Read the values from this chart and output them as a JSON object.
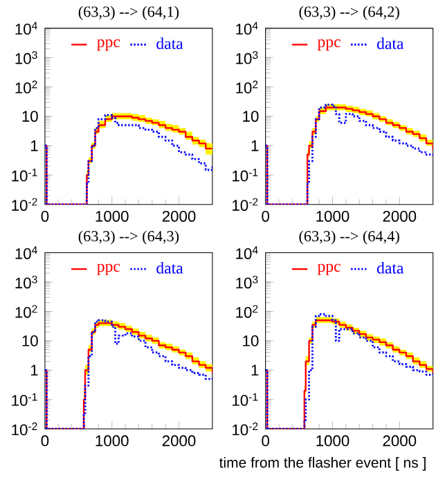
{
  "chart_data": [
    {
      "type": "step",
      "title": "(63,3) --> (64,1)",
      "log": "y",
      "legend": "top",
      "xlim": [
        0,
        2500
      ],
      "ylim": [
        0.01,
        10000
      ],
      "xticks": [
        0,
        1000,
        2000
      ],
      "yticks": [
        {
          "value": 0.01,
          "label": "10$^{-2}$"
        },
        {
          "value": 0.1,
          "label": "10$^{-1}$"
        },
        1,
        10,
        {
          "value": 100,
          "label": "10$^{2}$"
        },
        {
          "value": 1000,
          "label": "10$^{3}$"
        },
        {
          "value": 10000,
          "label": "10$^{4}$"
        }
      ],
      "series": [
        {
          "name": "ppc",
          "color": "#ff0000",
          "line_style": "solid",
          "x": [
            0,
            25,
            600,
            625,
            650,
            700,
            750,
            800,
            900,
            1000,
            1100,
            1200,
            1300,
            1400,
            1500,
            1600,
            1700,
            1800,
            1900,
            2000,
            2100,
            2200,
            2300,
            2400,
            2500
          ],
          "values": [
            1,
            0.01,
            0.01,
            0.1,
            0.3,
            1,
            3,
            5,
            8,
            10,
            10,
            10,
            9,
            8,
            7,
            6,
            5,
            4,
            3.5,
            3,
            2,
            1.5,
            1.2,
            0.8,
            0.8
          ],
          "upper": [
            1,
            0.01,
            0.01,
            0.15,
            0.4,
            1.3,
            4,
            7,
            11,
            13,
            13,
            13,
            12,
            11,
            9,
            8,
            7,
            5.5,
            5,
            4,
            3,
            2,
            1.6,
            1.2,
            1.2
          ],
          "lower": [
            1,
            0.01,
            0.01,
            0.08,
            0.25,
            0.8,
            2.5,
            4,
            6.5,
            8,
            8,
            8,
            7,
            6.5,
            5.5,
            5,
            4,
            3.2,
            2.8,
            2.4,
            1.6,
            1.1,
            0.9,
            0.5,
            0.5
          ]
        },
        {
          "name": "data",
          "color": "#0000ff",
          "line_style": "dotted",
          "x": [
            0,
            25,
            600,
            625,
            650,
            700,
            750,
            800,
            900,
            1000,
            1050,
            1100,
            1200,
            1300,
            1400,
            1500,
            1600,
            1700,
            1800,
            1900,
            2000,
            2100,
            2200,
            2300,
            2400,
            2500
          ],
          "values": [
            1,
            0.01,
            0.01,
            0.05,
            0.3,
            1,
            4,
            8,
            11,
            9,
            6,
            5,
            5,
            5,
            4,
            3.5,
            3,
            2,
            1.5,
            1,
            0.6,
            0.5,
            0.35,
            0.25,
            0.15,
            0.2
          ]
        }
      ]
    },
    {
      "type": "step",
      "title": "(63,3) --> (64,2)",
      "log": "y",
      "legend": "top",
      "xlim": [
        0,
        2500
      ],
      "ylim": [
        0.01,
        10000
      ],
      "xticks": [
        0,
        1000,
        2000
      ],
      "yticks": [
        {
          "value": 0.01,
          "label": "10$^{-2}$"
        },
        {
          "value": 0.1,
          "label": "10$^{-1}$"
        },
        1,
        10,
        {
          "value": 100,
          "label": "10$^{2}$"
        },
        {
          "value": 1000,
          "label": "10$^{3}$"
        },
        {
          "value": 10000,
          "label": "10$^{4}$"
        }
      ],
      "series": [
        {
          "name": "ppc",
          "color": "#ff0000",
          "line_style": "solid",
          "x": [
            0,
            25,
            600,
            625,
            650,
            700,
            750,
            800,
            900,
            1000,
            1100,
            1200,
            1300,
            1400,
            1500,
            1600,
            1700,
            1800,
            1900,
            2000,
            2100,
            2200,
            2300,
            2400,
            2500
          ],
          "values": [
            1,
            0.01,
            0.01,
            0.5,
            1,
            3,
            8,
            15,
            20,
            20,
            20,
            18,
            16,
            14,
            12,
            10,
            8,
            6,
            5,
            4,
            3,
            2.5,
            1.8,
            1.2,
            0.7
          ],
          "upper": [
            1,
            0.01,
            0.01,
            0.7,
            1.4,
            4,
            10,
            20,
            26,
            26,
            26,
            23,
            21,
            18,
            16,
            13,
            10,
            8,
            6.5,
            5,
            4,
            3.2,
            2.4,
            1.6,
            1
          ],
          "lower": [
            1,
            0.01,
            0.01,
            0.4,
            0.8,
            2.4,
            6.5,
            12,
            16,
            16,
            16,
            14,
            13,
            11,
            10,
            8,
            6.5,
            5,
            4,
            3.2,
            2.4,
            2,
            1.4,
            1,
            0.5
          ]
        },
        {
          "name": "data",
          "color": "#0000ff",
          "line_style": "dotted",
          "x": [
            0,
            25,
            600,
            625,
            650,
            700,
            750,
            800,
            900,
            1000,
            1050,
            1100,
            1200,
            1300,
            1400,
            1500,
            1600,
            1700,
            1800,
            1900,
            2000,
            2100,
            2200,
            2300,
            2400,
            2500
          ],
          "values": [
            1,
            0.01,
            0.01,
            0.05,
            0.3,
            2,
            8,
            20,
            25,
            22,
            12,
            6,
            12,
            10,
            7,
            5,
            4,
            3,
            2,
            1.5,
            1.2,
            1,
            0.8,
            0.6,
            0.5,
            0.4
          ]
        }
      ]
    },
    {
      "type": "step",
      "title": "(63,3) --> (64,3)",
      "log": "y",
      "legend": "top",
      "xlim": [
        0,
        2500
      ],
      "ylim": [
        0.01,
        10000
      ],
      "xticks": [
        0,
        1000,
        2000
      ],
      "yticks": [
        {
          "value": 0.01,
          "label": "10$^{-2}$"
        },
        {
          "value": 0.1,
          "label": "10$^{-1}$"
        },
        1,
        10,
        {
          "value": 100,
          "label": "10$^{2}$"
        },
        {
          "value": 1000,
          "label": "10$^{3}$"
        },
        {
          "value": 10000,
          "label": "10$^{4}$"
        }
      ],
      "series": [
        {
          "name": "ppc",
          "color": "#ff0000",
          "line_style": "solid",
          "x": [
            0,
            25,
            560,
            580,
            600,
            650,
            700,
            750,
            800,
            900,
            1000,
            1100,
            1200,
            1300,
            1400,
            1500,
            1600,
            1700,
            1800,
            1900,
            2000,
            2100,
            2200,
            2300,
            2400,
            2500
          ],
          "values": [
            1,
            0.01,
            0.01,
            0.1,
            1,
            5,
            20,
            35,
            40,
            40,
            35,
            30,
            25,
            20,
            15,
            12,
            10,
            7,
            6,
            5,
            4,
            3,
            2,
            1.5,
            1.2,
            0.8
          ],
          "upper": [
            1,
            0.01,
            0.01,
            0.2,
            1.5,
            7,
            26,
            45,
            52,
            52,
            45,
            40,
            33,
            26,
            20,
            16,
            13,
            9,
            8,
            6.5,
            5,
            4,
            2.7,
            2,
            1.6,
            1.1
          ],
          "lower": [
            1,
            0.01,
            0.01,
            0.07,
            0.7,
            4,
            16,
            28,
            32,
            32,
            28,
            24,
            20,
            16,
            12,
            9.5,
            8,
            5.5,
            4.8,
            4,
            3.2,
            2.4,
            1.6,
            1.2,
            0.9,
            0.6
          ]
        },
        {
          "name": "data",
          "color": "#0000ff",
          "line_style": "dotted",
          "x": [
            0,
            25,
            560,
            580,
            600,
            650,
            700,
            750,
            800,
            900,
            1000,
            1050,
            1100,
            1200,
            1300,
            1400,
            1500,
            1600,
            1700,
            1800,
            1900,
            2000,
            2100,
            2200,
            2300,
            2400,
            2500
          ],
          "values": [
            1,
            0.01,
            0.01,
            0.03,
            0.3,
            3,
            20,
            45,
            50,
            45,
            30,
            8,
            15,
            18,
            14,
            10,
            6,
            4,
            3,
            2,
            1.5,
            1.2,
            1,
            0.8,
            0.7,
            0.5,
            0.6
          ]
        }
      ]
    },
    {
      "type": "step",
      "title": "(63,3) --> (64,4)",
      "xlabel": "time from the flasher event [ ns ]",
      "log": "y",
      "legend": "top",
      "xlim": [
        0,
        2500
      ],
      "ylim": [
        0.01,
        10000
      ],
      "xticks": [
        0,
        1000,
        2000
      ],
      "yticks": [
        {
          "value": 0.01,
          "label": "10$^{-2}$"
        },
        {
          "value": 0.1,
          "label": "10$^{-1}$"
        },
        1,
        10,
        {
          "value": 100,
          "label": "10$^{2}$"
        },
        {
          "value": 1000,
          "label": "10$^{3}$"
        },
        {
          "value": 10000,
          "label": "10$^{4}$"
        }
      ],
      "series": [
        {
          "name": "ppc",
          "color": "#ff0000",
          "line_style": "solid",
          "x": [
            0,
            25,
            560,
            580,
            600,
            650,
            700,
            750,
            800,
            900,
            1000,
            1100,
            1200,
            1300,
            1400,
            1500,
            1600,
            1700,
            1800,
            1900,
            2000,
            2100,
            2200,
            2300,
            2400,
            2500
          ],
          "values": [
            1,
            0.01,
            0.01,
            0.2,
            2,
            10,
            35,
            50,
            50,
            50,
            45,
            35,
            28,
            22,
            17,
            13,
            11,
            9,
            7,
            5,
            4,
            3,
            2,
            1.5,
            1.1,
            0.8
          ],
          "upper": [
            1,
            0.01,
            0.01,
            0.3,
            3,
            13,
            45,
            65,
            65,
            65,
            58,
            45,
            36,
            28,
            22,
            17,
            14,
            12,
            9,
            6.5,
            5,
            4,
            2.7,
            2,
            1.4,
            1.1
          ],
          "lower": [
            1,
            0.01,
            0.01,
            0.15,
            1.5,
            8,
            28,
            40,
            40,
            40,
            36,
            28,
            22,
            17,
            13,
            10,
            8.5,
            7,
            5.5,
            4,
            3.2,
            2.4,
            1.6,
            1.2,
            0.9,
            0.6
          ]
        },
        {
          "name": "data",
          "color": "#0000ff",
          "line_style": "dotted",
          "x": [
            0,
            25,
            560,
            580,
            600,
            650,
            700,
            750,
            800,
            900,
            1000,
            1050,
            1100,
            1200,
            1300,
            1400,
            1500,
            1600,
            1700,
            1800,
            1900,
            2000,
            2100,
            2200,
            2300,
            2400,
            2500
          ],
          "values": [
            1,
            0.01,
            0.01,
            0.02,
            0.1,
            1,
            30,
            70,
            80,
            70,
            50,
            10,
            25,
            25,
            18,
            13,
            10,
            6,
            4,
            3,
            2,
            1.6,
            1.3,
            1,
            0.9,
            0.7,
            0.8
          ]
        }
      ]
    }
  ]
}
